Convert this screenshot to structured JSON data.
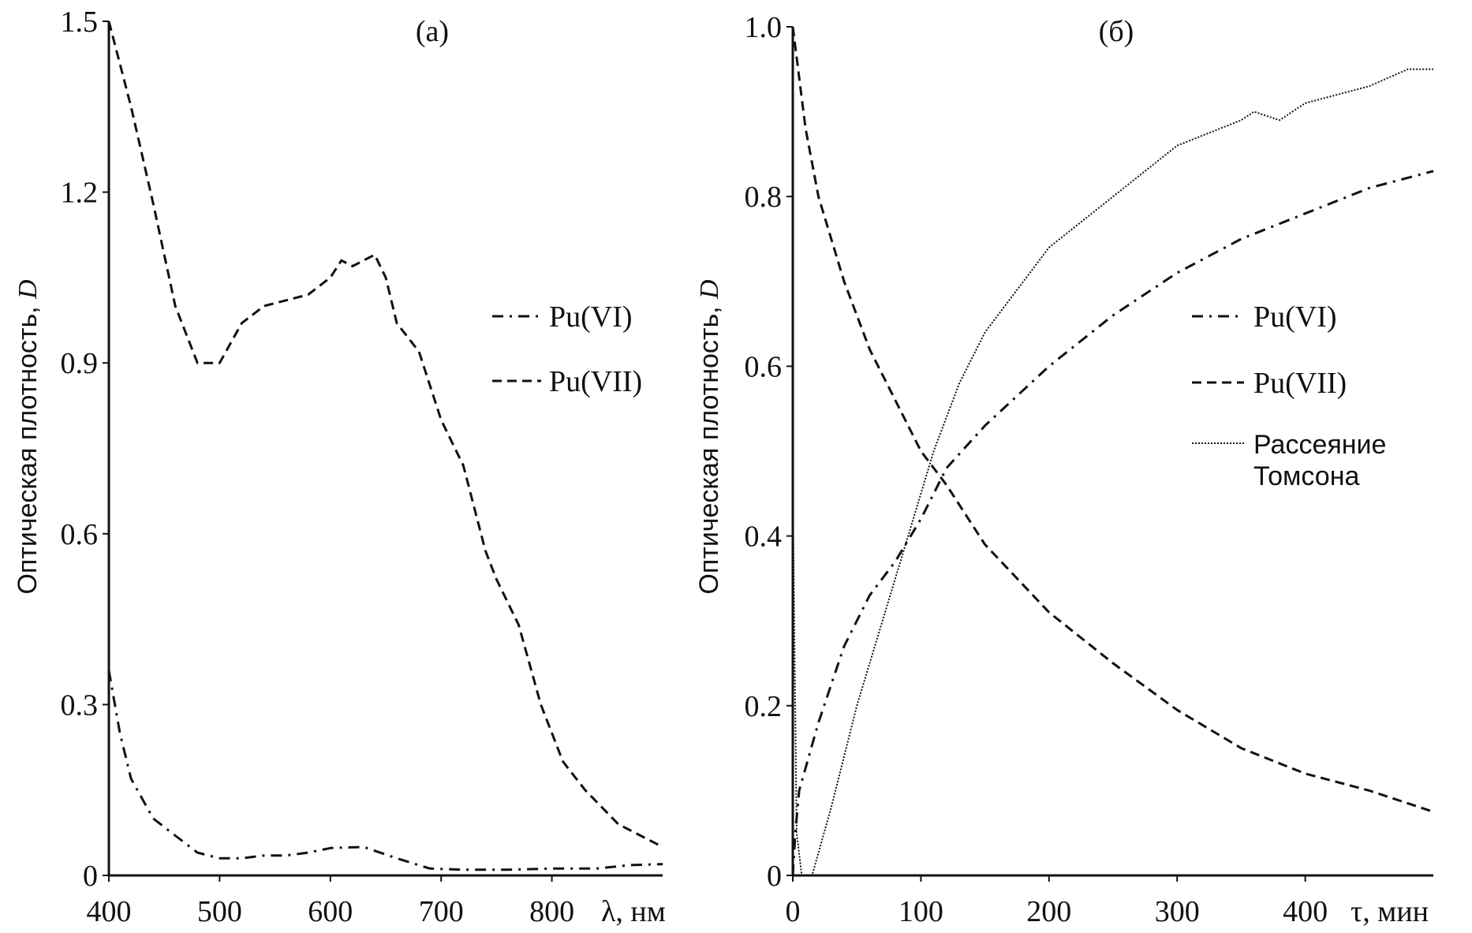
{
  "chart_data": [
    {
      "type": "line",
      "title": "(а)",
      "xlabel": "λ, нм",
      "ylabel": "Оптическая плотность, ",
      "ylabel_italic": "D",
      "xlim": [
        400,
        900
      ],
      "ylim": [
        0,
        1.5
      ],
      "xticks": [
        400,
        500,
        600,
        700,
        800
      ],
      "yticks": [
        0,
        0.3,
        0.6,
        0.9,
        1.2,
        1.5
      ],
      "ytick_labels": [
        "0",
        "0.3",
        "0.6",
        "0.9",
        "1.2",
        "1.5"
      ],
      "grid": false,
      "legend_position": "center-right",
      "series": [
        {
          "name": "Pu(VI)",
          "style": "dashdot",
          "x": [
            400,
            410,
            420,
            440,
            460,
            480,
            500,
            520,
            540,
            560,
            580,
            600,
            630,
            660,
            690,
            720,
            760,
            800,
            840,
            870,
            900
          ],
          "y": [
            0.36,
            0.25,
            0.17,
            0.1,
            0.07,
            0.04,
            0.03,
            0.03,
            0.035,
            0.035,
            0.04,
            0.048,
            0.05,
            0.03,
            0.012,
            0.01,
            0.01,
            0.012,
            0.012,
            0.018,
            0.02
          ]
        },
        {
          "name": "Pu(VII)",
          "style": "dashed",
          "x": [
            400,
            420,
            440,
            460,
            480,
            500,
            520,
            540,
            560,
            580,
            600,
            610,
            620,
            640,
            650,
            660,
            680,
            700,
            720,
            740,
            750,
            770,
            790,
            810,
            830,
            860,
            900
          ],
          "y": [
            1.5,
            1.35,
            1.18,
            1.0,
            0.9,
            0.9,
            0.97,
            1.0,
            1.01,
            1.02,
            1.05,
            1.08,
            1.07,
            1.09,
            1.05,
            0.97,
            0.92,
            0.8,
            0.72,
            0.57,
            0.52,
            0.44,
            0.3,
            0.2,
            0.15,
            0.09,
            0.05
          ]
        }
      ]
    },
    {
      "type": "line",
      "title": "(б)",
      "xlabel": "τ, мин",
      "ylabel": "Оптическая плотность, ",
      "ylabel_italic": "D",
      "xlim": [
        0,
        500
      ],
      "ylim": [
        0,
        1.0
      ],
      "xticks": [
        0,
        100,
        200,
        300,
        400
      ],
      "yticks": [
        0,
        0.2,
        0.4,
        0.6,
        0.8,
        1.0
      ],
      "ytick_labels": [
        "0",
        "0.2",
        "0.4",
        "0.6",
        "0.8",
        "1.0"
      ],
      "grid": false,
      "legend_position": "center-right",
      "series": [
        {
          "name": "Pu(VI)",
          "style": "dashdot",
          "x": [
            0,
            2,
            5,
            20,
            40,
            60,
            80,
            100,
            120,
            150,
            200,
            250,
            300,
            350,
            400,
            450,
            500
          ],
          "y": [
            0,
            0.05,
            0.1,
            0.18,
            0.27,
            0.33,
            0.37,
            0.42,
            0.48,
            0.53,
            0.6,
            0.66,
            0.71,
            0.75,
            0.78,
            0.81,
            0.83
          ]
        },
        {
          "name": "Pu(VII)",
          "style": "dashed",
          "x": [
            0,
            10,
            20,
            40,
            60,
            80,
            100,
            120,
            150,
            200,
            250,
            300,
            350,
            400,
            450,
            500
          ],
          "y": [
            1.0,
            0.88,
            0.8,
            0.7,
            0.62,
            0.56,
            0.5,
            0.46,
            0.39,
            0.31,
            0.25,
            0.195,
            0.15,
            0.12,
            0.1,
            0.075
          ]
        },
        {
          "name": "Рассеяние Томсона",
          "name_lines": [
            "Рассеяние",
            "Томсона"
          ],
          "style": "dotted",
          "x": [
            0,
            3,
            7,
            15,
            30,
            50,
            70,
            90,
            110,
            130,
            150,
            200,
            250,
            300,
            350,
            360,
            380,
            400,
            450,
            480,
            500
          ],
          "y": [
            0.45,
            0.05,
            0,
            0,
            0.08,
            0.2,
            0.3,
            0.4,
            0.5,
            0.58,
            0.64,
            0.74,
            0.8,
            0.86,
            0.89,
            0.9,
            0.89,
            0.91,
            0.93,
            0.95,
            0.95
          ]
        }
      ]
    }
  ]
}
